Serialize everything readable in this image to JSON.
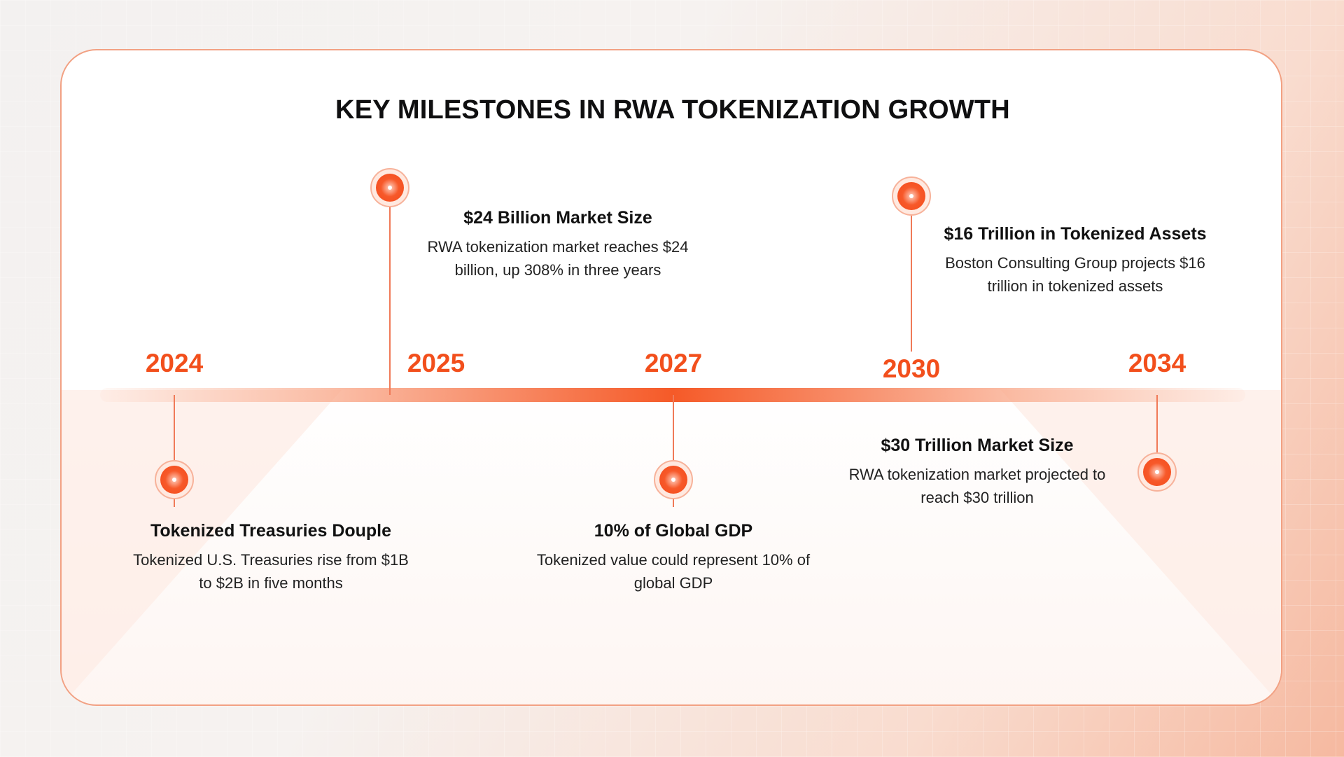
{
  "title": "KEY MILESTONES IN RWA TOKENIZATION GROWTH",
  "colors": {
    "accent": "#f24f1c",
    "card_border": "#f2a183",
    "text": "#111111"
  },
  "milestones": [
    {
      "year": "2024",
      "title": "Tokenized Treasuries Douple",
      "description": "Tokenized U.S. Treasuries rise from $1B to $2B in five months",
      "position": "below"
    },
    {
      "year": "2025",
      "title": "$24 Billion Market Size",
      "description": "RWA tokenization market reaches $24 billion, up 308% in three years",
      "position": "above"
    },
    {
      "year": "2027",
      "title": "10% of Global GDP",
      "description": "Tokenized value could represent 10% of global GDP",
      "position": "below"
    },
    {
      "year": "2030",
      "title": "$16 Trillion in Tokenized Assets",
      "description": "Boston Consulting Group projects $16 trillion in tokenized assets",
      "position": "above"
    },
    {
      "year": "2034",
      "title": "$30 Trillion Market Size",
      "description": "RWA tokenization market projected to reach $30 trillion",
      "position": "below"
    }
  ]
}
